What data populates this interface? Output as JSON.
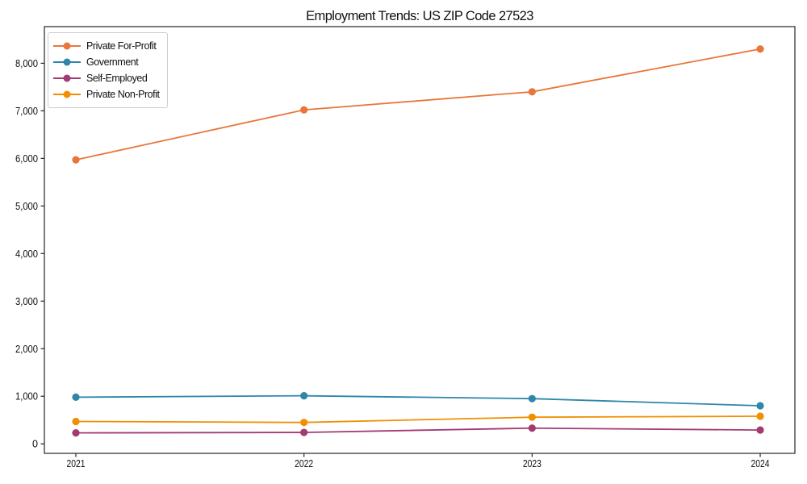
{
  "chart_data": {
    "type": "line",
    "title": "Employment Trends: US ZIP Code 27523",
    "xlabel": "",
    "ylabel": "",
    "categories": [
      "2021",
      "2022",
      "2023",
      "2024"
    ],
    "series": [
      {
        "name": "Private For-Profit",
        "color": "#E8763B",
        "values": [
          5970,
          7020,
          7400,
          8300
        ]
      },
      {
        "name": "Government",
        "color": "#2E86AB",
        "values": [
          980,
          1010,
          950,
          800
        ]
      },
      {
        "name": "Self-Employed",
        "color": "#A23B72",
        "values": [
          230,
          240,
          330,
          290
        ]
      },
      {
        "name": "Private Non-Profit",
        "color": "#F18F01",
        "values": [
          470,
          450,
          560,
          580
        ]
      }
    ],
    "yticks": [
      0,
      1000,
      2000,
      3000,
      4000,
      5000,
      6000,
      7000,
      8000
    ],
    "ytick_labels": [
      "0",
      "1,000",
      "2,000",
      "3,000",
      "4,000",
      "5,000",
      "6,000",
      "7,000",
      "8,000"
    ],
    "ylim": [
      -200,
      8770
    ],
    "xlim": [
      -0.138,
      3.152
    ],
    "grid": false,
    "legend_position": "upper-left",
    "marker": "circle",
    "axis_color": "#262626",
    "text_color": "#111111"
  }
}
